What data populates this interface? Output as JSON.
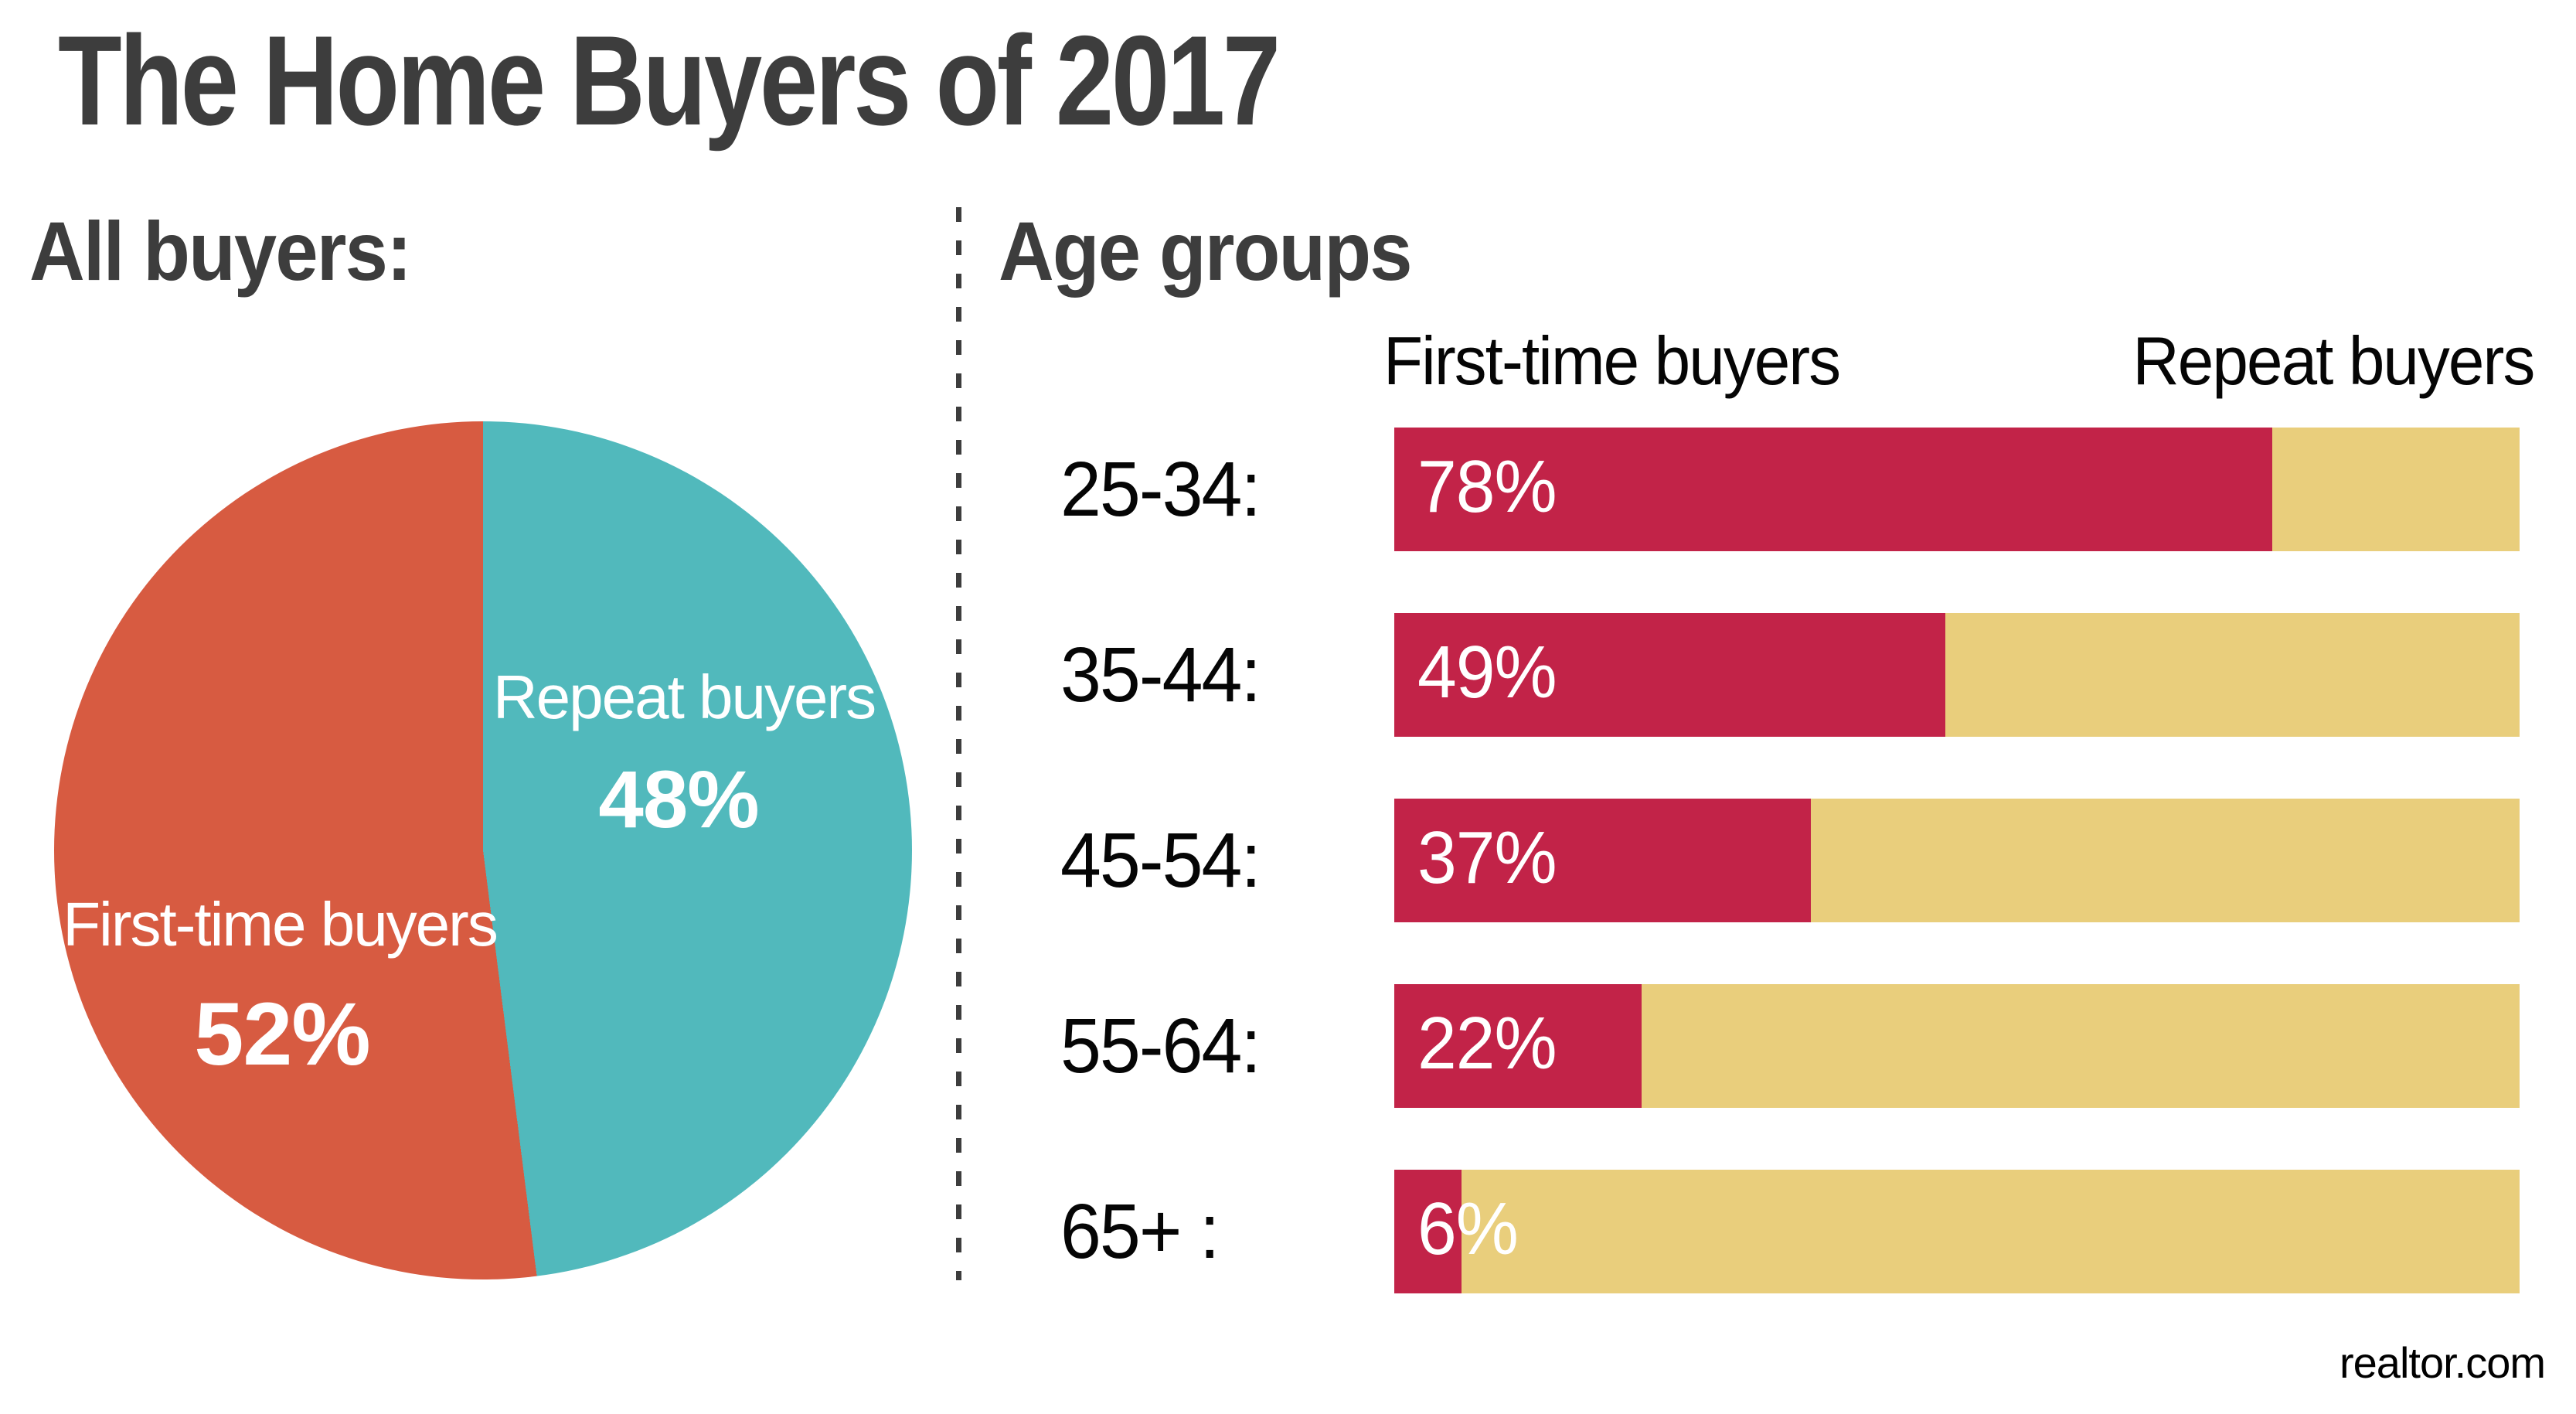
{
  "title": "The Home Buyers of 2017",
  "source": "realtor.com",
  "pie_section": {
    "heading": "All buyers:",
    "slices": [
      {
        "label": "First-time buyers",
        "value": 52,
        "value_label": "52%",
        "color": "#D75B41"
      },
      {
        "label": "Repeat buyers",
        "value": 48,
        "value_label": "48%",
        "color": "#51B9BC"
      }
    ]
  },
  "bars_section": {
    "heading": "Age groups",
    "column_headers": [
      "First-time buyers",
      "Repeat buyers"
    ],
    "colors": {
      "first_time": "#C22348",
      "repeat": "#E9CE7C"
    },
    "rows": [
      {
        "label": "25-34:",
        "first_time": 78,
        "value_label": "78%"
      },
      {
        "label": "35-44:",
        "first_time": 49,
        "value_label": "49%"
      },
      {
        "label": "45-54:",
        "first_time": 37,
        "value_label": "37%"
      },
      {
        "label": "55-64:",
        "first_time": 22,
        "value_label": "22%"
      },
      {
        "label": "65+ :",
        "first_time": 6,
        "value_label": "6%"
      }
    ]
  },
  "chart_data": [
    {
      "type": "pie",
      "title": "All buyers:",
      "labels": [
        "First-time buyers",
        "Repeat buyers"
      ],
      "values": [
        52,
        48
      ],
      "colors": [
        "#D75B41",
        "#51B9BC"
      ],
      "unit": "%",
      "start_angle_deg": 0,
      "direction": "clockwise",
      "first_slice_drawn": "Repeat buyers"
    },
    {
      "type": "bar",
      "subtype": "horizontal-stacked-100pct",
      "title": "Age groups",
      "categories": [
        "25-34",
        "35-44",
        "45-54",
        "55-64",
        "65+"
      ],
      "series": [
        {
          "name": "First-time buyers",
          "values": [
            78,
            49,
            37,
            22,
            6
          ],
          "color": "#C22348"
        },
        {
          "name": "Repeat buyers",
          "values": [
            22,
            51,
            63,
            78,
            94
          ],
          "color": "#E9CE7C"
        }
      ],
      "unit": "%",
      "xlim": [
        0,
        100
      ],
      "grid": false,
      "legend_position": "top",
      "data_labels": "first-series-only"
    }
  ]
}
